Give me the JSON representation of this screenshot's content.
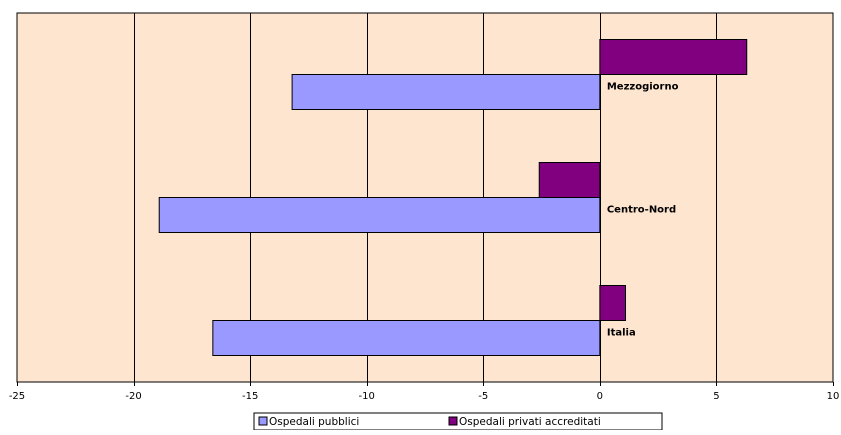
{
  "chart_data": {
    "type": "bar",
    "orientation": "horizontal",
    "categories": [
      "Mezzogiorno",
      "Centro-Nord",
      "Italia"
    ],
    "series": [
      {
        "name": "Ospedali pubblici",
        "values": [
          -13.2,
          -18.9,
          -16.6
        ],
        "color": "#9999ff"
      },
      {
        "name": "Ospedali privati accreditati",
        "values": [
          6.3,
          -2.6,
          1.1
        ],
        "color": "#800080"
      }
    ],
    "xlim": [
      -25,
      10
    ],
    "xticks": [
      -25,
      -20,
      -15,
      -10,
      -5,
      0,
      5,
      10
    ],
    "grid": "vertical",
    "legend": "bottom",
    "plot_background": "#fde5cf"
  }
}
